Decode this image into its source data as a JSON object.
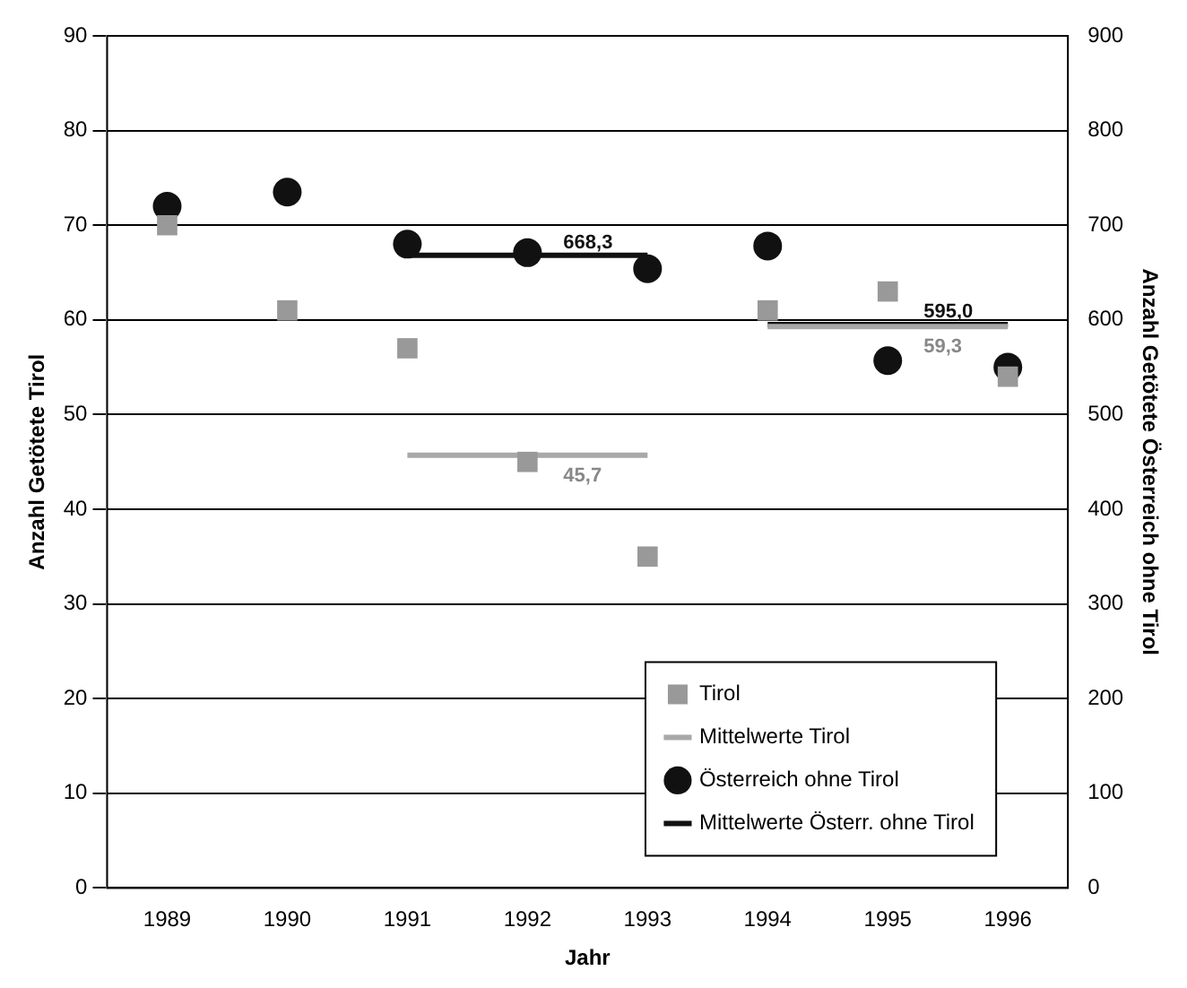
{
  "chart_data": {
    "type": "scatter",
    "xlabel": "Jahr",
    "ylabel": "Anzahl Getötete Tirol",
    "y2label": "Anzahl Getötete Österreich ohne Tirol",
    "categories": [
      "1989",
      "1990",
      "1991",
      "1992",
      "1993",
      "1994",
      "1995",
      "1996"
    ],
    "series": [
      {
        "name": "Tirol",
        "marker": "square",
        "color": "#999999",
        "values": [
          70,
          61,
          57,
          45,
          35,
          61,
          63,
          54
        ]
      },
      {
        "name": "Mittelwerte Tirol",
        "type": "line",
        "marker": "none",
        "color": "#a8a8a8",
        "values": [
          null,
          null,
          45.7,
          45.7,
          45.7,
          59.3,
          59.3,
          59.3
        ],
        "value_labels": [
          null,
          null,
          null,
          "45,7",
          null,
          null,
          "59,3",
          null
        ]
      },
      {
        "name": "Österreich ohne Tirol",
        "marker": "circle",
        "axis": "y2",
        "color": "#111111",
        "values": [
          720,
          735,
          680,
          671,
          654,
          678,
          557,
          550
        ]
      },
      {
        "name": "Mittelwerte Österr. ohne Tirol",
        "type": "line",
        "marker": "none",
        "axis": "y2",
        "color": "#111111",
        "values": [
          null,
          null,
          668.3,
          668.3,
          668.3,
          595.0,
          595.0,
          595.0
        ],
        "value_labels": [
          null,
          null,
          null,
          "668,3",
          null,
          null,
          "595,0",
          null
        ]
      }
    ],
    "ylim": [
      0,
      90
    ],
    "yticks": [
      0,
      10,
      20,
      30,
      40,
      50,
      60,
      70,
      80,
      90
    ],
    "y2lim": [
      0,
      900
    ],
    "y2ticks": [
      0,
      100,
      200,
      300,
      400,
      500,
      600,
      700,
      800,
      900
    ],
    "grid": "y",
    "legend": "bottom right"
  }
}
